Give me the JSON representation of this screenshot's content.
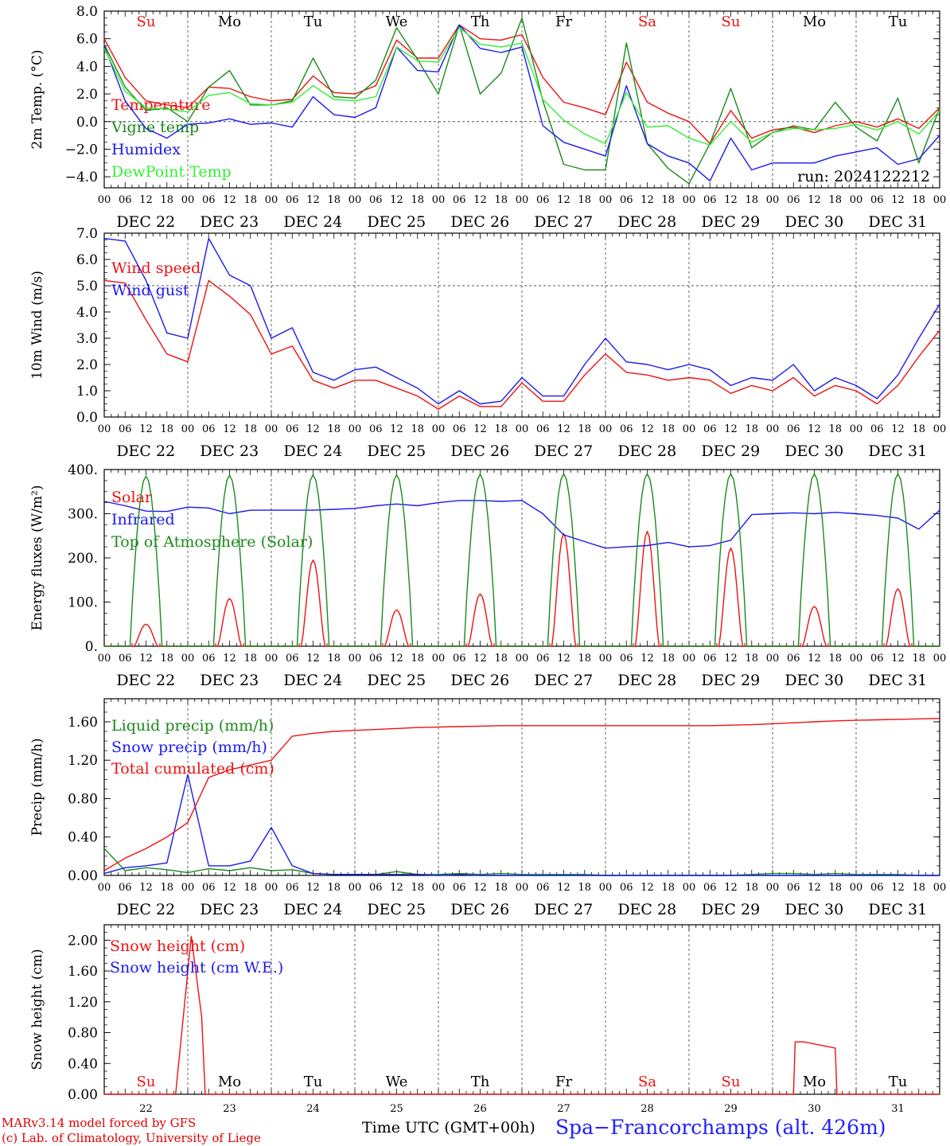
{
  "colors": {
    "red": "#ee1111",
    "green": "#1a8a1a",
    "blue": "#1a1aee",
    "lightgreen": "#33ee33",
    "grid": "#555555"
  },
  "weekdays": [
    "Su",
    "Mo",
    "Tu",
    "We",
    "Th",
    "Fr",
    "Sa",
    "Su",
    "Mo",
    "Tu"
  ],
  "weekday_colors": [
    "red",
    "black",
    "black",
    "black",
    "black",
    "black",
    "red",
    "red",
    "black",
    "black"
  ],
  "hour_ticks": [
    "00",
    "06",
    "12",
    "18"
  ],
  "dates": [
    "DEC 22",
    "DEC 23",
    "DEC 24",
    "DEC 25",
    "DEC 26",
    "DEC 27",
    "DEC 28",
    "DEC 29",
    "DEC 30",
    "DEC 31"
  ],
  "day_numbers": [
    "22",
    "23",
    "24",
    "25",
    "26",
    "27",
    "28",
    "29",
    "30",
    "31"
  ],
  "run_label": "run: 2024122212",
  "footer": {
    "credit_line1": "MARv3.14 model forced by GFS",
    "credit_line2": "(c) Lab. of Climatology, University of Liege",
    "x_title": "Time UTC (GMT+00h)",
    "station": "Spa−Francorchamps (alt. 426m)"
  },
  "chart_data": [
    {
      "type": "line",
      "ylabel": "2m Temp. (°C)",
      "ylim": [
        -4.8,
        8.0
      ],
      "yticks": [
        "8.0",
        "6.0",
        "4.0",
        "2.0",
        "0.0",
        "−2.0",
        "−4.0"
      ],
      "ytick_values": [
        8,
        6,
        4,
        2,
        0,
        -2,
        -4
      ],
      "hline": 0,
      "x_hours": [
        0,
        6,
        12,
        18,
        24,
        30,
        36,
        42,
        48,
        54,
        60,
        66,
        72,
        78,
        84,
        90,
        96,
        102,
        108,
        114,
        120,
        126,
        132,
        138,
        144,
        150,
        156,
        162,
        168,
        174,
        180,
        186,
        192,
        198,
        204,
        210,
        216,
        222,
        228,
        234,
        240
      ],
      "series": [
        {
          "name": "Temperature",
          "color": "red",
          "values": [
            6.0,
            3.2,
            1.5,
            1.2,
            1.0,
            2.5,
            2.4,
            1.8,
            1.5,
            1.6,
            3.3,
            2.1,
            2.0,
            2.6,
            5.9,
            4.6,
            4.6,
            7.0,
            6.0,
            5.9,
            6.3,
            3.2,
            1.4,
            1.0,
            0.5,
            4.3,
            1.4,
            0.6,
            0.0,
            -1.6,
            0.8,
            -1.2,
            -0.6,
            -0.4,
            -0.8,
            -0.3,
            0.0,
            -0.4,
            0.2,
            -0.5,
            1.0
          ]
        },
        {
          "name": "Vigne temp",
          "color": "green",
          "values": [
            5.6,
            2.5,
            0.8,
            1.0,
            0.0,
            2.5,
            3.7,
            1.2,
            1.2,
            1.5,
            4.6,
            1.8,
            1.7,
            3.0,
            6.8,
            4.5,
            2.0,
            7.0,
            2.0,
            3.5,
            7.5,
            1.5,
            -3.1,
            -3.5,
            -3.5,
            5.7,
            -1.6,
            -3.4,
            -4.5,
            -1.6,
            2.4,
            -1.9,
            -0.8,
            -0.3,
            -0.6,
            1.4,
            -0.4,
            -1.4,
            1.7,
            -3.0,
            1.0
          ]
        },
        {
          "name": "Humidex",
          "color": "blue",
          "values": [
            5.5,
            1.5,
            -0.5,
            -1.2,
            -0.2,
            -0.1,
            0.2,
            -0.2,
            -0.1,
            -0.4,
            1.8,
            0.5,
            0.3,
            1.0,
            5.4,
            3.7,
            3.6,
            7.0,
            5.3,
            5.0,
            5.4,
            -0.3,
            -1.5,
            -2.0,
            -2.5,
            2.6,
            -1.6,
            -2.5,
            -3.0,
            -4.3,
            -1.2,
            -3.5,
            -3.0,
            -3.0,
            -3.0,
            -2.5,
            -2.2,
            -1.9,
            -3.1,
            -2.7,
            -1.0
          ]
        },
        {
          "name": "DewPoint Temp",
          "color": "lightgreen",
          "values": [
            5.3,
            2.2,
            1.0,
            0.9,
            0.7,
            1.9,
            2.1,
            1.3,
            1.2,
            1.4,
            2.6,
            1.6,
            1.5,
            1.8,
            5.4,
            4.4,
            4.3,
            6.8,
            5.6,
            5.4,
            5.7,
            1.6,
            0.1,
            -0.9,
            -1.6,
            2.1,
            -0.4,
            -0.3,
            -1.2,
            -1.7,
            0.0,
            -1.5,
            -0.8,
            -0.5,
            -0.6,
            -0.5,
            -0.2,
            -0.6,
            0.0,
            -0.9,
            0.8
          ]
        }
      ]
    },
    {
      "type": "line",
      "ylabel": "10m Wind (m/s)",
      "ylim": [
        0,
        7.0
      ],
      "yticks": [
        "7.0",
        "6.0",
        "5.0",
        "4.0",
        "3.0",
        "2.0",
        "1.0",
        "0.0"
      ],
      "ytick_values": [
        7,
        6,
        5,
        4,
        3,
        2,
        1,
        0
      ],
      "hline": 5,
      "x_hours": [
        0,
        6,
        12,
        18,
        24,
        30,
        36,
        42,
        48,
        54,
        60,
        66,
        72,
        78,
        84,
        90,
        96,
        102,
        108,
        114,
        120,
        126,
        132,
        138,
        144,
        150,
        156,
        162,
        168,
        174,
        180,
        186,
        192,
        198,
        204,
        210,
        216,
        222,
        228,
        234,
        240
      ],
      "series": [
        {
          "name": "Wind speed",
          "color": "red",
          "values": [
            5.2,
            5.1,
            3.7,
            2.4,
            2.1,
            5.2,
            4.6,
            3.9,
            2.4,
            2.7,
            1.4,
            1.1,
            1.4,
            1.4,
            1.1,
            0.8,
            0.3,
            0.8,
            0.4,
            0.4,
            1.3,
            0.6,
            0.6,
            1.6,
            2.4,
            1.7,
            1.6,
            1.4,
            1.5,
            1.4,
            0.9,
            1.2,
            1.0,
            1.5,
            0.8,
            1.2,
            1.0,
            0.5,
            1.2,
            2.3,
            3.3
          ]
        },
        {
          "name": "Wind gust",
          "color": "blue",
          "values": [
            6.8,
            6.7,
            5.2,
            3.2,
            3.0,
            6.8,
            5.4,
            5.0,
            3.0,
            3.4,
            1.7,
            1.4,
            1.8,
            1.9,
            1.5,
            1.1,
            0.5,
            1.0,
            0.5,
            0.6,
            1.5,
            0.8,
            0.8,
            2.0,
            3.0,
            2.1,
            2.0,
            1.8,
            2.0,
            1.8,
            1.2,
            1.5,
            1.4,
            2.0,
            1.0,
            1.5,
            1.2,
            0.7,
            1.6,
            3.0,
            4.3
          ]
        }
      ]
    },
    {
      "type": "line",
      "ylabel": "Energy fluxes (W/m²)",
      "ylim": [
        0,
        400
      ],
      "yticks": [
        "400.",
        "300.",
        "200.",
        "100.",
        "0."
      ],
      "ytick_values": [
        400,
        300,
        200,
        100,
        0
      ],
      "x_hours": [
        0,
        6,
        12,
        18,
        24,
        30,
        36,
        42,
        48,
        54,
        60,
        66,
        72,
        78,
        84,
        90,
        96,
        102,
        108,
        114,
        120,
        126,
        132,
        138,
        144,
        150,
        156,
        162,
        168,
        174,
        180,
        186,
        192,
        198,
        204,
        210,
        216,
        222,
        228,
        234,
        240
      ],
      "series": [
        {
          "name": "Solar",
          "color": "red",
          "peak_values": [
            50,
            108,
            195,
            82,
            118,
            255,
            260,
            222,
            90,
            130
          ]
        },
        {
          "name": "Infrared",
          "color": "blue",
          "values": [
            328,
            318,
            306,
            305,
            315,
            313,
            300,
            308,
            308,
            308,
            308,
            310,
            312,
            318,
            322,
            318,
            325,
            330,
            330,
            328,
            330,
            300,
            252,
            237,
            222,
            225,
            228,
            235,
            225,
            228,
            240,
            298,
            300,
            302,
            300,
            303,
            300,
            296,
            290,
            265,
            308
          ]
        },
        {
          "name": "Top of Atmosphere (Solar)",
          "color": "green",
          "peak_values": [
            385,
            387,
            388,
            388,
            389,
            390,
            390,
            390,
            390,
            390
          ]
        }
      ]
    },
    {
      "type": "line",
      "ylabel": "Precip (mm/h)",
      "ylim": [
        0,
        1.84
      ],
      "yticks": [
        "1.60",
        "1.20",
        "0.80",
        "0.40",
        "0.00"
      ],
      "ytick_values": [
        1.6,
        1.2,
        0.8,
        0.4,
        0.0
      ],
      "x_hours": [
        0,
        6,
        12,
        18,
        24,
        30,
        36,
        42,
        48,
        54,
        60,
        66,
        72,
        78,
        84,
        90,
        96,
        102,
        108,
        114,
        120,
        126,
        132,
        138,
        144,
        150,
        156,
        162,
        168,
        174,
        180,
        186,
        192,
        198,
        204,
        210,
        216,
        222,
        228,
        234,
        240
      ],
      "series": [
        {
          "name": "Liquid precip (mm/h)",
          "color": "green",
          "values": [
            0.28,
            0.05,
            0.08,
            0.06,
            0.03,
            0.07,
            0.05,
            0.08,
            0.05,
            0.06,
            0.02,
            0.01,
            0.01,
            0.01,
            0.04,
            0.01,
            0.01,
            0.02,
            0.01,
            0.02,
            0.01,
            0.01,
            0.01,
            0.01,
            0.0,
            0.0,
            0.0,
            0.0,
            0.0,
            0.0,
            0.0,
            0.01,
            0.02,
            0.02,
            0.01,
            0.02,
            0.01,
            0.01,
            0.01,
            0.0,
            0.0
          ]
        },
        {
          "name": "Snow precip (mm/h)",
          "color": "blue",
          "values": [
            0.02,
            0.08,
            0.1,
            0.13,
            1.05,
            0.1,
            0.1,
            0.15,
            0.5,
            0.1,
            0.02,
            0.01,
            0.01,
            0.01,
            0.01,
            0.01,
            0.0,
            0.01,
            0.0,
            0.0,
            0.0,
            0.0,
            0.0,
            0.0,
            0.0,
            0.0,
            0.0,
            0.0,
            0.0,
            0.0,
            0.0,
            0.0,
            0.0,
            0.0,
            0.0,
            0.0,
            0.0,
            0.0,
            0.0,
            0.0,
            0.0
          ]
        },
        {
          "name": "Total cumulated (cm)",
          "color": "red",
          "values": [
            0.05,
            0.18,
            0.28,
            0.4,
            0.55,
            1.02,
            1.1,
            1.15,
            1.2,
            1.45,
            1.48,
            1.5,
            1.51,
            1.52,
            1.53,
            1.54,
            1.545,
            1.55,
            1.555,
            1.56,
            1.56,
            1.56,
            1.56,
            1.56,
            1.56,
            1.56,
            1.56,
            1.56,
            1.56,
            1.56,
            1.565,
            1.57,
            1.58,
            1.59,
            1.6,
            1.61,
            1.615,
            1.62,
            1.625,
            1.63,
            1.635
          ]
        }
      ]
    },
    {
      "type": "line",
      "ylabel": "Snow height (cm)",
      "ylim": [
        0,
        2.2
      ],
      "yticks": [
        "2.00",
        "1.60",
        "1.20",
        "0.80",
        "0.40",
        "0.00"
      ],
      "ytick_values": [
        2.0,
        1.6,
        1.2,
        0.8,
        0.4,
        0.0
      ],
      "x_hours": [
        0,
        6,
        12,
        18,
        24,
        30,
        36,
        42,
        48,
        54,
        60,
        66,
        72,
        78,
        84,
        90,
        96,
        102,
        108,
        114,
        120,
        126,
        132,
        138,
        144,
        150,
        156,
        162,
        168,
        174,
        180,
        186,
        192,
        198,
        204,
        210,
        216,
        222,
        228,
        234,
        240
      ],
      "series": [
        {
          "name": "Snow height (cm)",
          "color": "red",
          "points": [
            [
              0,
              0
            ],
            [
              20.5,
              0
            ],
            [
              25,
              2.05
            ],
            [
              28,
              1.0
            ],
            [
              29,
              0
            ],
            [
              198,
              0
            ],
            [
              198.5,
              0.68
            ],
            [
              201,
              0.68
            ],
            [
              210,
              0.6
            ],
            [
              210.5,
              0
            ],
            [
              240,
              0
            ]
          ]
        },
        {
          "name": "Snow height (cm W.E.)",
          "color": "blue",
          "points": []
        }
      ]
    }
  ]
}
